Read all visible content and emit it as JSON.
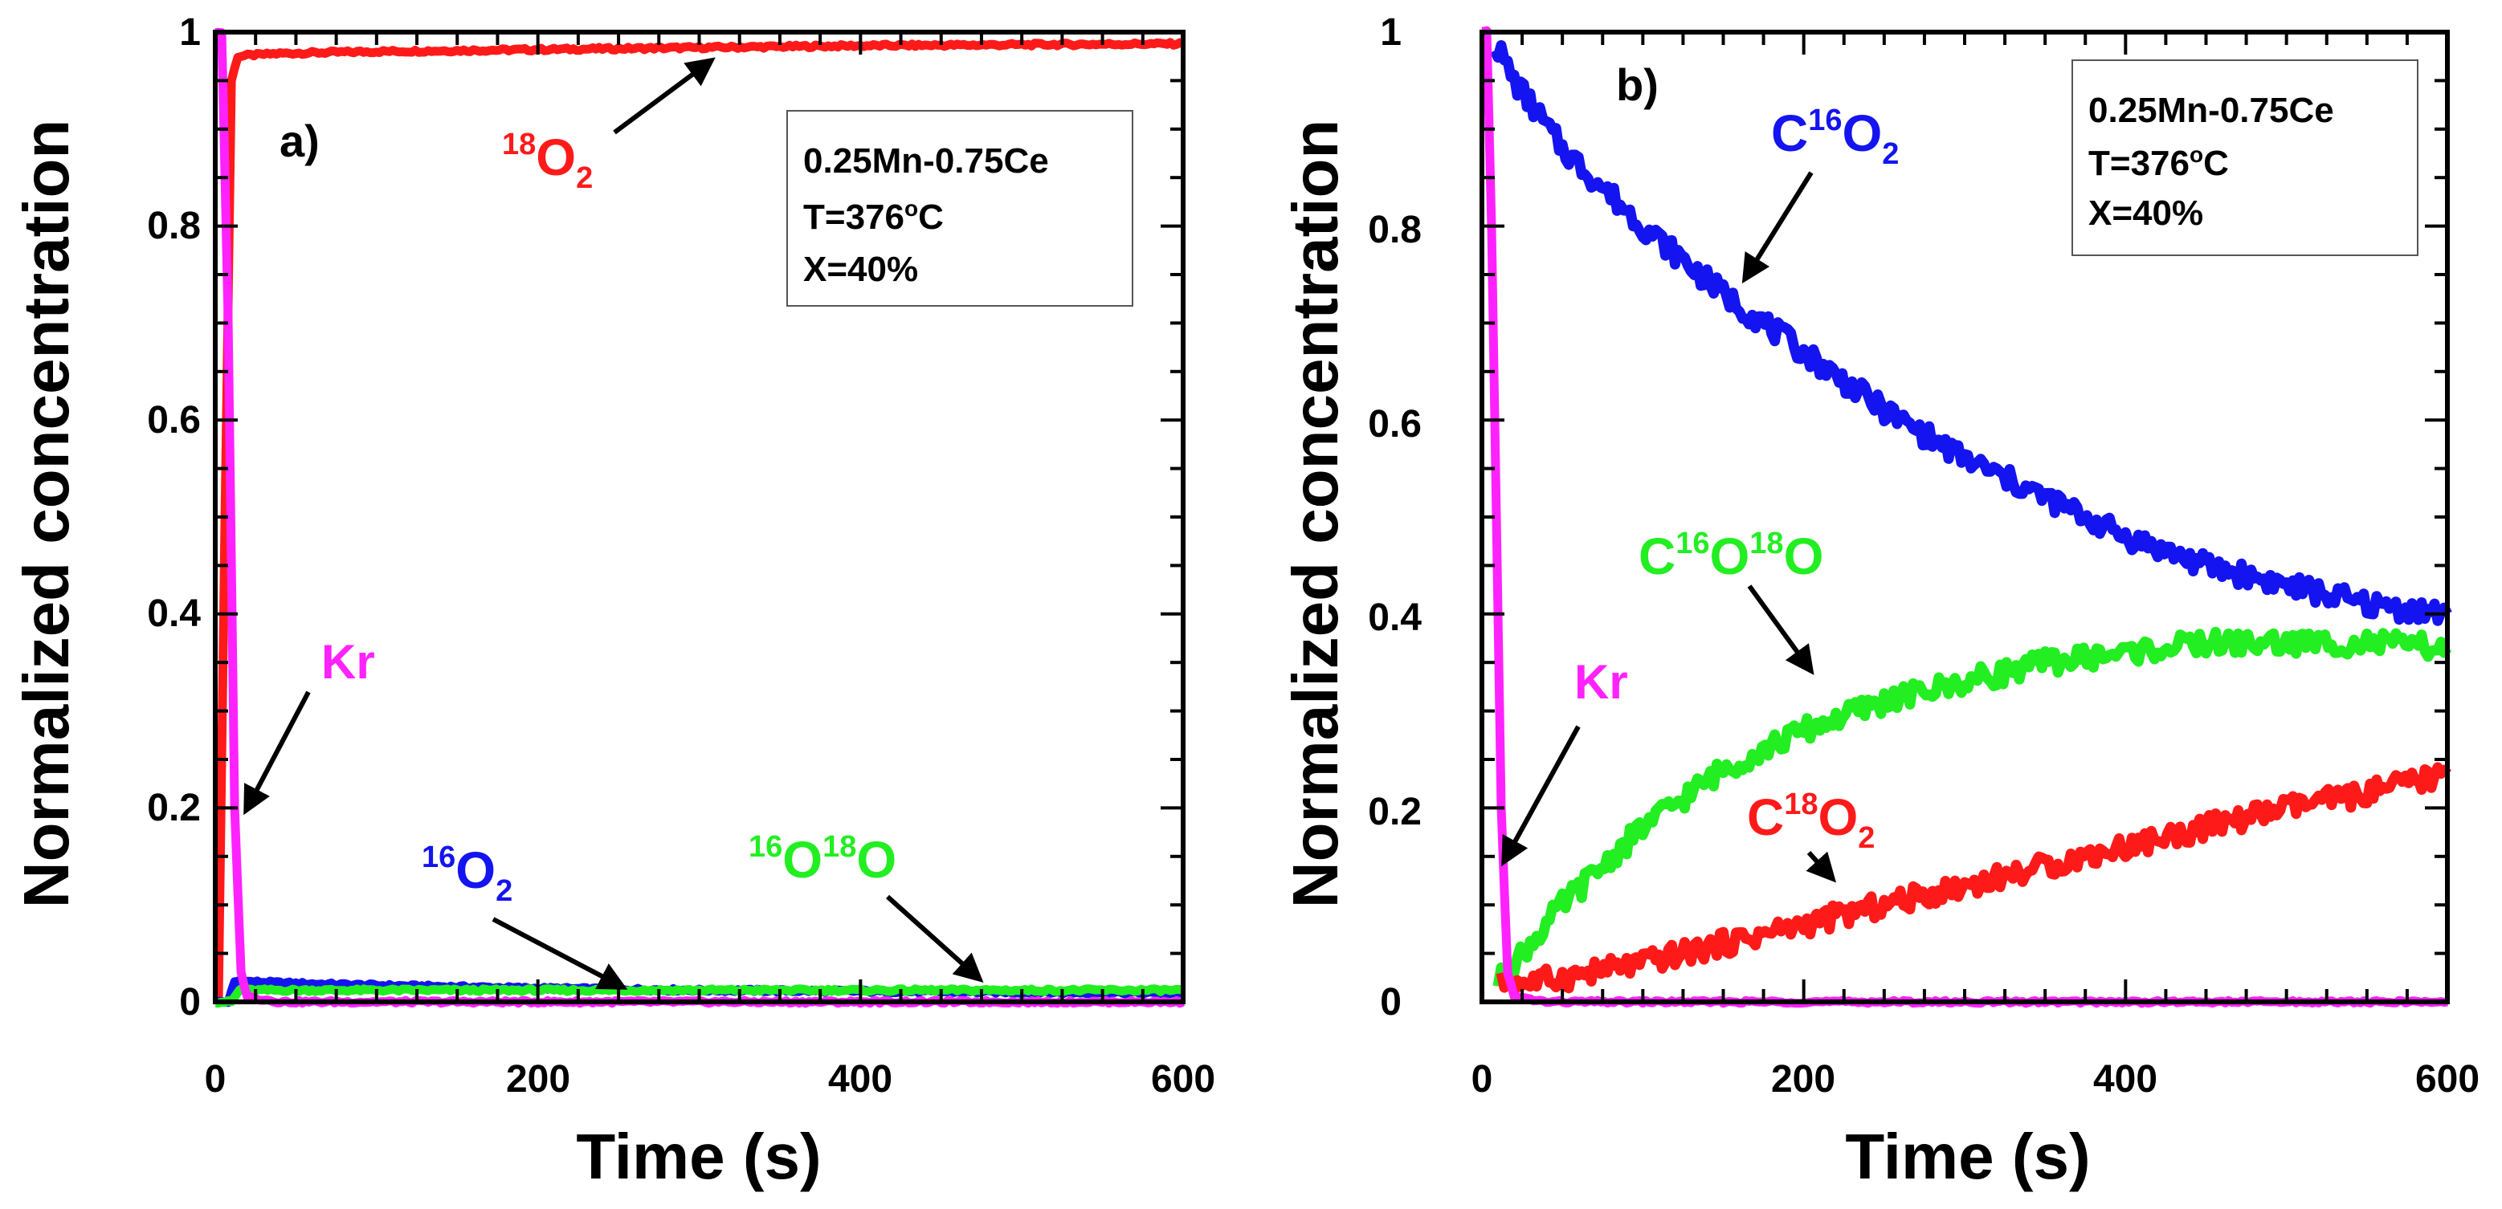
{
  "colors": {
    "red": "#ff1a1a",
    "blue": "#1414f0",
    "green": "#22ee22",
    "magenta": "#ff22ff",
    "black": "#000000"
  },
  "chart_data": [
    {
      "type": "line",
      "panel_label": "a)",
      "xlabel": "Time (s)",
      "ylabel": "Normalized concentration",
      "xlim": [
        0,
        600
      ],
      "ylim": [
        0,
        1
      ],
      "xticks": [
        0,
        200,
        400,
        600
      ],
      "xtick_labels": [
        "0",
        "200",
        "400",
        "600"
      ],
      "yticks": [
        0,
        0.2,
        0.4,
        0.6,
        0.8,
        1
      ],
      "ytick_labels": [
        "0",
        "0.2",
        "0.4",
        "0.6",
        "0.8",
        "1"
      ],
      "info_box": [
        "0.25Mn-0.75Ce",
        "T=376",
        "o",
        "C",
        "X=40%"
      ],
      "series": [
        {
          "name": "18O2",
          "color": "#ff1a1a",
          "x": [
            0,
            2,
            6,
            10,
            14,
            20,
            40,
            100,
            200,
            300,
            400,
            500,
            600
          ],
          "y": [
            0,
            0,
            0.5,
            0.95,
            0.975,
            0.976,
            0.978,
            0.98,
            0.982,
            0.984,
            0.986,
            0.987,
            0.988
          ]
        },
        {
          "name": "16O2",
          "color": "#1414f0",
          "x": [
            0,
            8,
            12,
            15,
            20,
            50,
            100,
            200,
            300,
            400,
            500,
            600
          ],
          "y": [
            0,
            0,
            0.02,
            0.022,
            0.021,
            0.019,
            0.017,
            0.014,
            0.012,
            0.011,
            0.01,
            0.009
          ]
        },
        {
          "name": "16O18O",
          "color": "#22ee22",
          "x": [
            0,
            10,
            15,
            50,
            100,
            200,
            300,
            400,
            500,
            600
          ],
          "y": [
            0,
            0,
            0.012,
            0.012,
            0.012,
            0.012,
            0.012,
            0.012,
            0.012,
            0.012
          ]
        },
        {
          "name": "Kr",
          "color": "#ff22ff",
          "x": [
            0,
            4,
            8,
            12,
            16,
            20,
            40,
            100,
            300,
            600
          ],
          "y": [
            1,
            1,
            0.7,
            0.2,
            0.03,
            0.005,
            0,
            0,
            0,
            0
          ]
        }
      ],
      "annotations": [
        {
          "text": "O",
          "sup": "18",
          "sub": "2",
          "color": "#ff1a1a"
        },
        {
          "text": "O",
          "sup": "16",
          "sub": "2",
          "color": "#1414f0"
        },
        {
          "text": "O",
          "sup": "16",
          "sup2": "18",
          "text2": "O",
          "color": "#22ee22"
        },
        {
          "text": "Kr",
          "color": "#ff22ff"
        }
      ]
    },
    {
      "type": "line",
      "panel_label": "b)",
      "xlabel": "Time (s)",
      "ylabel": "Normalized concentration",
      "xlim": [
        0,
        600
      ],
      "ylim": [
        0,
        1
      ],
      "xticks": [
        0,
        200,
        400,
        600
      ],
      "xtick_labels": [
        "0",
        "200",
        "400",
        "600"
      ],
      "yticks": [
        0,
        0.2,
        0.4,
        0.6,
        0.8,
        1
      ],
      "ytick_labels": [
        "0",
        "0.2",
        "0.4",
        "0.6",
        "0.8",
        "1"
      ],
      "info_box": [
        "0.25Mn-0.75Ce",
        "T=376",
        "o",
        "C",
        "X=40%"
      ],
      "series": [
        {
          "name": "C16O2",
          "color": "#1414f0",
          "x": [
            8,
            20,
            50,
            100,
            150,
            200,
            250,
            300,
            350,
            400,
            450,
            500,
            550,
            600
          ],
          "y": [
            0.99,
            0.95,
            0.88,
            0.8,
            0.73,
            0.67,
            0.61,
            0.56,
            0.52,
            0.48,
            0.45,
            0.43,
            0.41,
            0.4
          ]
        },
        {
          "name": "C16O18O",
          "color": "#22ee22",
          "x": [
            10,
            20,
            50,
            100,
            150,
            200,
            250,
            300,
            350,
            400,
            450,
            500,
            550,
            600
          ],
          "y": [
            0.02,
            0.04,
            0.1,
            0.18,
            0.24,
            0.28,
            0.31,
            0.33,
            0.35,
            0.36,
            0.37,
            0.37,
            0.37,
            0.365
          ]
        },
        {
          "name": "C18O2",
          "color": "#ff1a1a",
          "x": [
            12,
            30,
            50,
            100,
            150,
            200,
            250,
            300,
            350,
            400,
            450,
            500,
            550,
            600
          ],
          "y": [
            0.02,
            0.02,
            0.025,
            0.04,
            0.06,
            0.08,
            0.1,
            0.12,
            0.14,
            0.16,
            0.18,
            0.2,
            0.215,
            0.235
          ]
        },
        {
          "name": "Kr",
          "color": "#ff22ff",
          "x": [
            0,
            3,
            6,
            9,
            12,
            16,
            20,
            40,
            300,
            600
          ],
          "y": [
            1,
            1,
            0.8,
            0.5,
            0.2,
            0.03,
            0.005,
            0,
            0,
            0
          ]
        }
      ],
      "annotations": [
        {
          "text": "C",
          "sup": "16",
          "text2": "O",
          "sub": "2",
          "color": "#1414f0"
        },
        {
          "text": "C",
          "sup": "16",
          "text2": "O",
          "sup2": "18",
          "text3": "O",
          "color": "#22ee22"
        },
        {
          "text": "C",
          "sup": "18",
          "text2": "O",
          "sub": "2",
          "color": "#ff1a1a"
        },
        {
          "text": "Kr",
          "color": "#ff22ff"
        }
      ]
    }
  ]
}
